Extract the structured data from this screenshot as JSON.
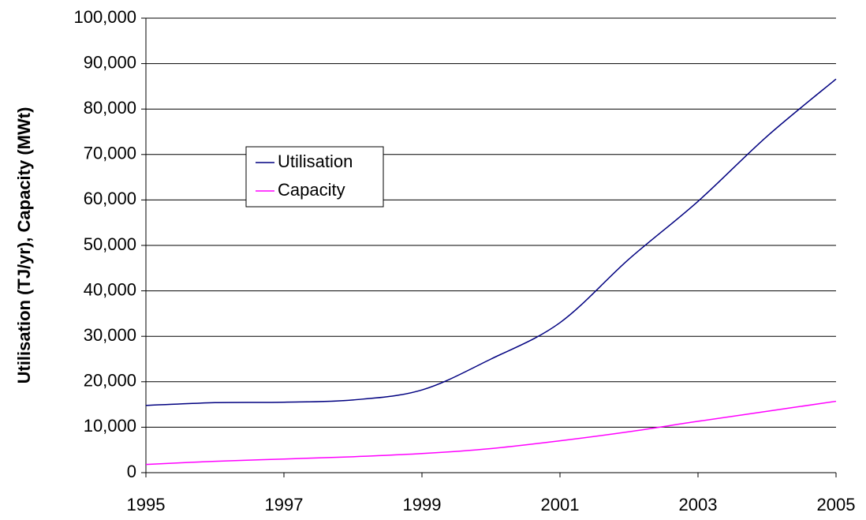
{
  "chart_data": {
    "type": "line",
    "y_label": "Utilisation (TJ/yr), Capacity (MWt)",
    "x": [
      1995,
      1996,
      1997,
      1998,
      1999,
      2000,
      2001,
      2002,
      2003,
      2004,
      2005
    ],
    "series": [
      {
        "name": "Utilisation",
        "color": "#000080",
        "values": [
          14800,
          15400,
          15500,
          16000,
          18200,
          25000,
          33000,
          47000,
          59700,
          74000,
          86600
        ]
      },
      {
        "name": "Capacity",
        "color": "#ff00ff",
        "values": [
          1800,
          2500,
          3000,
          3500,
          4200,
          5300,
          7000,
          9000,
          11300,
          13500,
          15700
        ]
      }
    ],
    "xlim": [
      1995,
      2005
    ],
    "xticks": [
      1995,
      1997,
      1999,
      2001,
      2003,
      2005
    ],
    "ylim": [
      0,
      100000
    ],
    "yticks": [
      0,
      {
        "value": 10000,
        "label": "10,000"
      },
      {
        "value": 20000,
        "label": "20,000"
      },
      {
        "value": 30000,
        "label": "30,000"
      },
      {
        "value": 40000,
        "label": "40,000"
      },
      {
        "value": 50000,
        "label": "50,000"
      },
      {
        "value": 60000,
        "label": "60,000"
      },
      {
        "value": 70000,
        "label": "70,000"
      },
      {
        "value": 80000,
        "label": "80,000"
      },
      {
        "value": 90000,
        "label": "90,000"
      },
      {
        "value": 100000,
        "label": "100,000"
      }
    ],
    "grid": true,
    "legend": "upper left"
  }
}
